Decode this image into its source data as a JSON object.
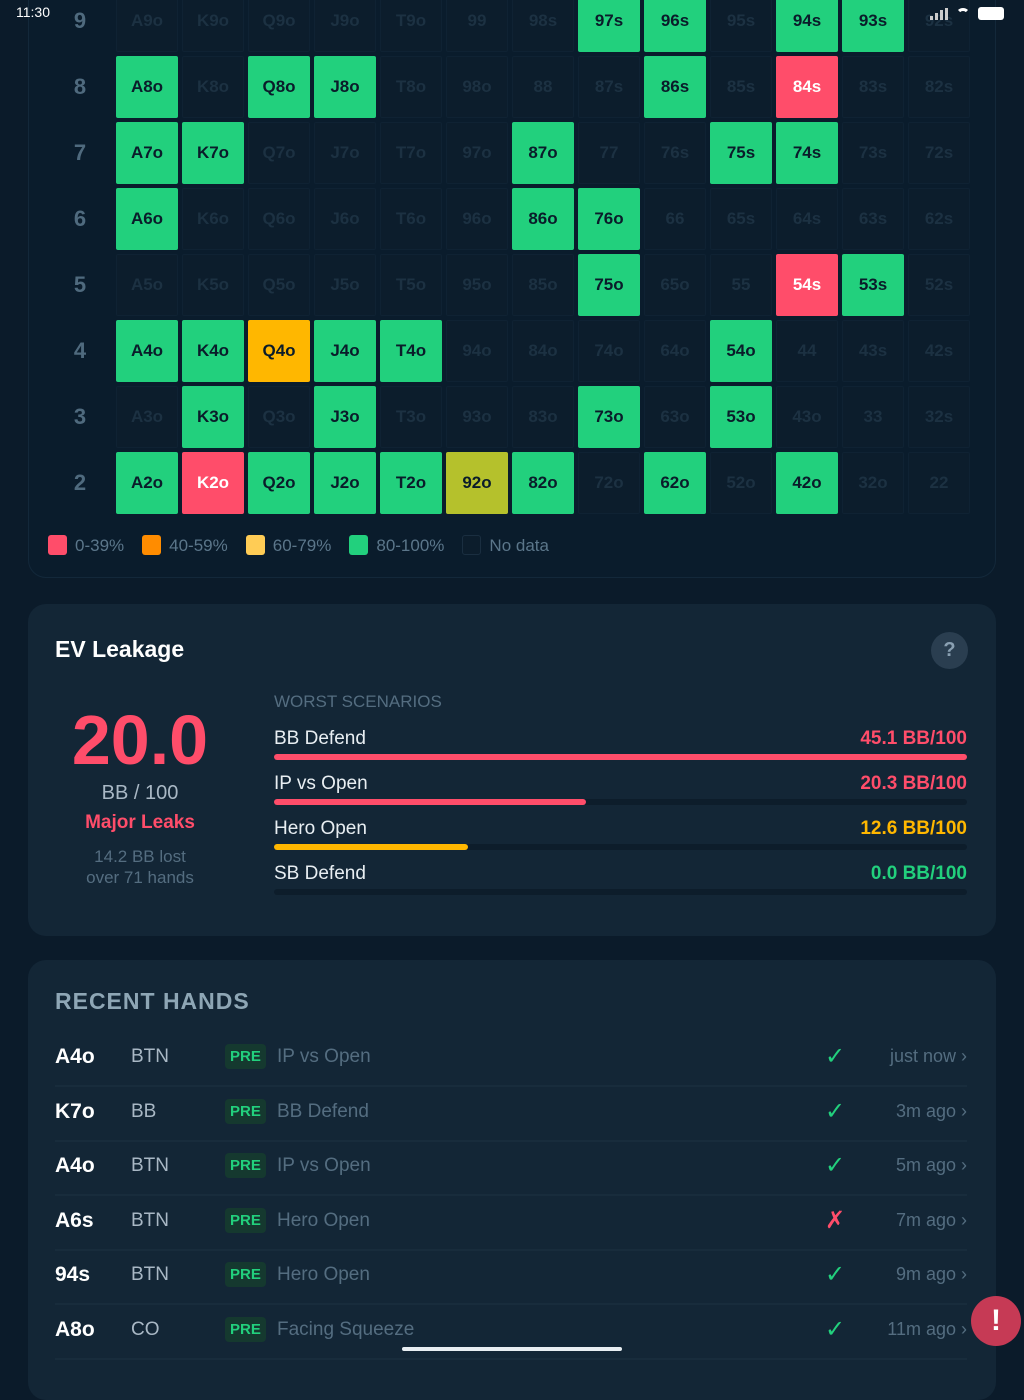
{
  "status_bar": {
    "time": "11:30"
  },
  "grid": {
    "rows": [
      {
        "label": "9",
        "cells": [
          [
            "A9o",
            "n"
          ],
          [
            "K9o",
            "n"
          ],
          [
            "Q9o",
            "n"
          ],
          [
            "J9o",
            "n"
          ],
          [
            "T9o",
            "n"
          ],
          [
            "99",
            "n"
          ],
          [
            "98s",
            "n"
          ],
          [
            "97s",
            "g"
          ],
          [
            "96s",
            "g"
          ],
          [
            "95s",
            "n"
          ],
          [
            "94s",
            "g"
          ],
          [
            "93s",
            "g"
          ],
          [
            "92s",
            "n"
          ]
        ]
      },
      {
        "label": "8",
        "cells": [
          [
            "A8o",
            "g"
          ],
          [
            "K8o",
            "n"
          ],
          [
            "Q8o",
            "g"
          ],
          [
            "J8o",
            "g"
          ],
          [
            "T8o",
            "n"
          ],
          [
            "98o",
            "n"
          ],
          [
            "88",
            "n"
          ],
          [
            "87s",
            "n"
          ],
          [
            "86s",
            "g"
          ],
          [
            "85s",
            "n"
          ],
          [
            "84s",
            "r"
          ],
          [
            "83s",
            "n"
          ],
          [
            "82s",
            "n"
          ]
        ]
      },
      {
        "label": "7",
        "cells": [
          [
            "A7o",
            "g"
          ],
          [
            "K7o",
            "g"
          ],
          [
            "Q7o",
            "n"
          ],
          [
            "J7o",
            "n"
          ],
          [
            "T7o",
            "n"
          ],
          [
            "97o",
            "n"
          ],
          [
            "87o",
            "g"
          ],
          [
            "77",
            "n"
          ],
          [
            "76s",
            "n"
          ],
          [
            "75s",
            "g"
          ],
          [
            "74s",
            "g"
          ],
          [
            "73s",
            "n"
          ],
          [
            "72s",
            "n"
          ]
        ]
      },
      {
        "label": "6",
        "cells": [
          [
            "A6o",
            "g"
          ],
          [
            "K6o",
            "n"
          ],
          [
            "Q6o",
            "n"
          ],
          [
            "J6o",
            "n"
          ],
          [
            "T6o",
            "n"
          ],
          [
            "96o",
            "n"
          ],
          [
            "86o",
            "g"
          ],
          [
            "76o",
            "g"
          ],
          [
            "66",
            "n"
          ],
          [
            "65s",
            "n"
          ],
          [
            "64s",
            "n"
          ],
          [
            "63s",
            "n"
          ],
          [
            "62s",
            "n"
          ]
        ]
      },
      {
        "label": "5",
        "cells": [
          [
            "A5o",
            "n"
          ],
          [
            "K5o",
            "n"
          ],
          [
            "Q5o",
            "n"
          ],
          [
            "J5o",
            "n"
          ],
          [
            "T5o",
            "n"
          ],
          [
            "95o",
            "n"
          ],
          [
            "85o",
            "n"
          ],
          [
            "75o",
            "g"
          ],
          [
            "65o",
            "n"
          ],
          [
            "55",
            "n"
          ],
          [
            "54s",
            "r"
          ],
          [
            "53s",
            "g"
          ],
          [
            "52s",
            "n"
          ]
        ]
      },
      {
        "label": "4",
        "cells": [
          [
            "A4o",
            "g"
          ],
          [
            "K4o",
            "g"
          ],
          [
            "Q4o",
            "o"
          ],
          [
            "J4o",
            "g"
          ],
          [
            "T4o",
            "g"
          ],
          [
            "94o",
            "n"
          ],
          [
            "84o",
            "n"
          ],
          [
            "74o",
            "n"
          ],
          [
            "64o",
            "n"
          ],
          [
            "54o",
            "g"
          ],
          [
            "44",
            "n"
          ],
          [
            "43s",
            "n"
          ],
          [
            "42s",
            "n"
          ]
        ]
      },
      {
        "label": "3",
        "cells": [
          [
            "A3o",
            "n"
          ],
          [
            "K3o",
            "g"
          ],
          [
            "Q3o",
            "n"
          ],
          [
            "J3o",
            "g"
          ],
          [
            "T3o",
            "n"
          ],
          [
            "93o",
            "n"
          ],
          [
            "83o",
            "n"
          ],
          [
            "73o",
            "g"
          ],
          [
            "63o",
            "n"
          ],
          [
            "53o",
            "g"
          ],
          [
            "43o",
            "n"
          ],
          [
            "33",
            "n"
          ],
          [
            "32s",
            "n"
          ]
        ]
      },
      {
        "label": "2",
        "cells": [
          [
            "A2o",
            "g"
          ],
          [
            "K2o",
            "r"
          ],
          [
            "Q2o",
            "g"
          ],
          [
            "J2o",
            "g"
          ],
          [
            "T2o",
            "g"
          ],
          [
            "92o",
            "y"
          ],
          [
            "82o",
            "g"
          ],
          [
            "72o",
            "n"
          ],
          [
            "62o",
            "g"
          ],
          [
            "52o",
            "n"
          ],
          [
            "42o",
            "g"
          ],
          [
            "32o",
            "n"
          ],
          [
            "22",
            "n"
          ]
        ]
      }
    ],
    "legend": [
      {
        "label": "0-39%",
        "color": "#ff4d6a"
      },
      {
        "label": "40-59%",
        "color": "#ff8c00"
      },
      {
        "label": "60-79%",
        "color": "#ffcc55"
      },
      {
        "label": "80-100%",
        "color": "#22d07d"
      },
      {
        "label": "No data",
        "color": "#0c1d2c"
      }
    ]
  },
  "ev": {
    "title": "EV Leakage",
    "help": "?",
    "value": "20.0",
    "unit": "BB / 100",
    "severity": "Major Leaks",
    "lost_line1": "14.2 BB lost",
    "lost_line2": "over 71 hands",
    "worst_label": "WORST SCENARIOS",
    "scenarios": [
      {
        "name": "BB Defend",
        "value": "45.1 BB/100",
        "pct": 100,
        "color": "#ff4d6a"
      },
      {
        "name": "IP vs Open",
        "value": "20.3 BB/100",
        "pct": 45,
        "color": "#ff4d6a"
      },
      {
        "name": "Hero Open",
        "value": "12.6 BB/100",
        "pct": 28,
        "color": "#ffb700"
      },
      {
        "name": "SB Defend",
        "value": "0.0 BB/100",
        "pct": 0,
        "color": "#22d07d"
      }
    ]
  },
  "recent": {
    "title": "RECENT HANDS",
    "hands": [
      {
        "hand": "A4o",
        "pos": "BTN",
        "street": "PRE",
        "scenario": "IP vs Open",
        "result": "✓",
        "ok": true,
        "time": "just now ›"
      },
      {
        "hand": "K7o",
        "pos": "BB",
        "street": "PRE",
        "scenario": "BB Defend",
        "result": "✓",
        "ok": true,
        "time": "3m ago ›"
      },
      {
        "hand": "A4o",
        "pos": "BTN",
        "street": "PRE",
        "scenario": "IP vs Open",
        "result": "✓",
        "ok": true,
        "time": "5m ago ›"
      },
      {
        "hand": "A6s",
        "pos": "BTN",
        "street": "PRE",
        "scenario": "Hero Open",
        "result": "✗",
        "ok": false,
        "time": "7m ago ›"
      },
      {
        "hand": "94s",
        "pos": "BTN",
        "street": "PRE",
        "scenario": "Hero Open",
        "result": "✓",
        "ok": true,
        "time": "9m ago ›"
      },
      {
        "hand": "A8o",
        "pos": "CO",
        "street": "PRE",
        "scenario": "Facing Squeeze",
        "result": "✓",
        "ok": true,
        "time": "11m ago ›"
      }
    ]
  },
  "fab": {
    "label": "!"
  }
}
